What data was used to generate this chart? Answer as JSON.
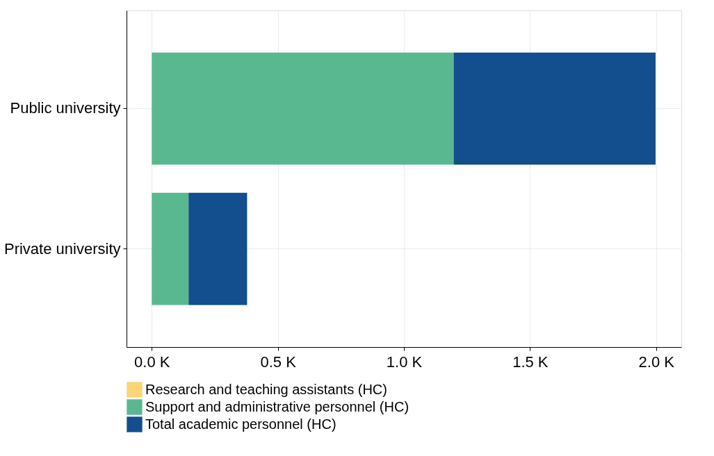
{
  "chart_data": {
    "type": "bar",
    "orientation": "horizontal",
    "stacked": true,
    "categories": [
      "Public university",
      "Private university"
    ],
    "series": [
      {
        "name": "Research and teaching assistants (HC)",
        "color": "#fdd576",
        "values": [
          null,
          null
        ]
      },
      {
        "name": "Support and administrative personnel (HC)",
        "color": "#5ab891",
        "values": [
          1.197,
          0.146
        ]
      },
      {
        "name": "Total academic personnel (HC)",
        "color": "#134e8e",
        "values": [
          0.801,
          0.232
        ]
      }
    ],
    "xlim": [
      -0.1,
      2.1
    ],
    "xticks": [
      {
        "value": 0,
        "label": "0.0 K"
      },
      {
        "value": 0.5,
        "label": "0.5 K"
      },
      {
        "value": 1.0,
        "label": "1.0 K"
      },
      {
        "value": 1.5,
        "label": "1.5 K"
      },
      {
        "value": 2.0,
        "label": "2.0 K"
      }
    ],
    "grid": true,
    "legend": "bottom"
  }
}
